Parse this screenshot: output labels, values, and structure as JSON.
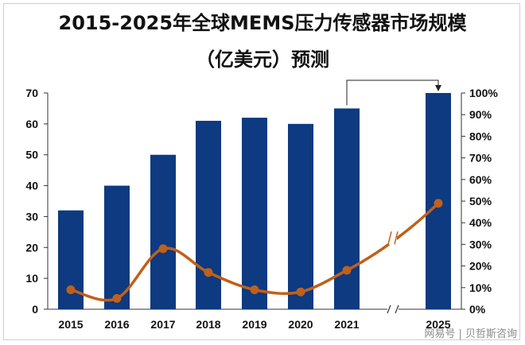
{
  "title_line1": "2015-2025年全球MEMS压力传感器市场规模",
  "title_line2": "（亿美元）预测",
  "watermark": "网易号 | 贝哲斯咨询",
  "colors": {
    "bar": "#0d3a80",
    "line": "#c0601a",
    "axis": "#333333"
  },
  "chart_data": {
    "type": "bar",
    "title": "2015-2025年全球MEMS压力传感器市场规模（亿美元）预测",
    "categories": [
      "2015",
      "2016",
      "2017",
      "2018",
      "2019",
      "2020",
      "2021",
      "2025"
    ],
    "series": [
      {
        "type": "bar",
        "axis": "left",
        "values": [
          32,
          40,
          50,
          61,
          62,
          60,
          65,
          70
        ]
      },
      {
        "type": "line",
        "axis": "right",
        "values": [
          0.09,
          0.05,
          0.28,
          0.17,
          0.09,
          0.08,
          0.18,
          0.49
        ]
      }
    ],
    "ylim_left": [
      0,
      70
    ],
    "yticks_left": [
      "0",
      "10",
      "20",
      "30",
      "40",
      "50",
      "60",
      "70"
    ],
    "ylim_right": [
      0,
      1.0
    ],
    "yticks_right": [
      "0%",
      "10%",
      "20%",
      "30%",
      "40%",
      "50%",
      "60%",
      "70%",
      "80%",
      "90%",
      "100%"
    ],
    "axis_break_between": [
      "2021",
      "2025"
    ],
    "annotation": "arrow from 2021 to 2025",
    "grid": false,
    "legend": "none"
  }
}
